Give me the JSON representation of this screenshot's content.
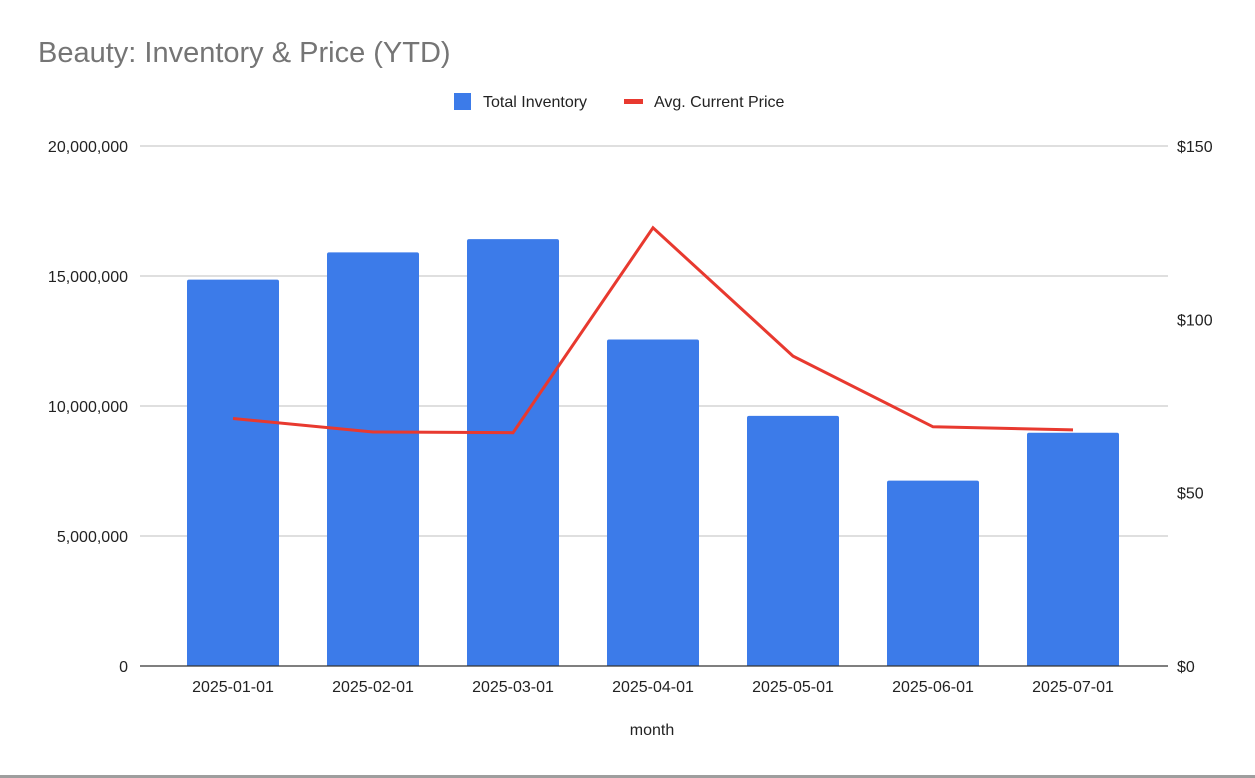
{
  "chart_data": {
    "type": "bar+line",
    "title": "Beauty: Inventory & Price (YTD)",
    "xlabel": "month",
    "ylabel": "",
    "y2label": "",
    "categories": [
      "2025-01-01",
      "2025-02-01",
      "2025-03-01",
      "2025-04-01",
      "2025-05-01",
      "2025-06-01",
      "2025-07-01"
    ],
    "series": [
      {
        "name": "Total Inventory",
        "type": "bar",
        "axis": "left",
        "color": "#3c7be9",
        "values": [
          14860000,
          15910000,
          16420000,
          12560000,
          9620000,
          7130000,
          8970000
        ]
      },
      {
        "name": "Avg. Current Price",
        "type": "line",
        "axis": "right",
        "color": "#e8392f",
        "values": [
          71.4,
          67.5,
          67.3,
          126.4,
          89.4,
          69.0,
          68.1
        ]
      }
    ],
    "ylim": [
      0,
      20000000
    ],
    "y_ticks": [
      "0",
      "5,000,000",
      "10,000,000",
      "15,000,000",
      "20,000,000"
    ],
    "y2lim": [
      0,
      150
    ],
    "y2_ticks": [
      "$0",
      "$50",
      "$100",
      "$150"
    ],
    "grid": true,
    "legend": "top"
  }
}
